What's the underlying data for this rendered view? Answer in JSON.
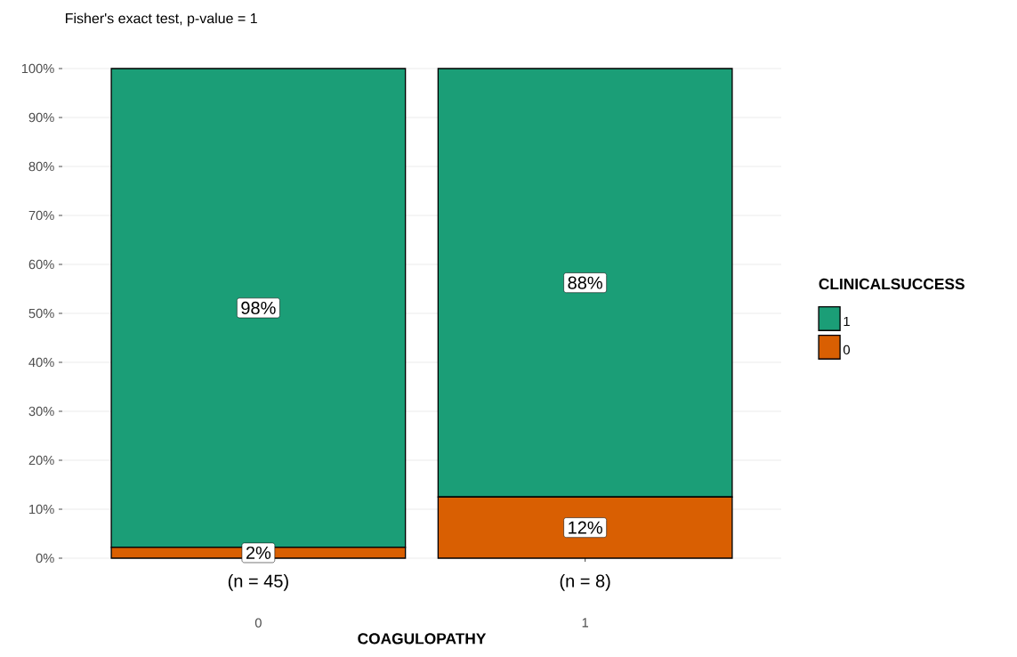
{
  "chart_data": {
    "type": "bar",
    "stacked": true,
    "title": "Fisher's exact test, p-value = 1",
    "xlabel": "COAGULOPATHY",
    "legend_title": "CLINICALSUCCESS",
    "legend": "right",
    "grid": "y",
    "categories": [
      "0",
      "1"
    ],
    "series": [
      {
        "name": "0",
        "color": "#d95f02",
        "values": [
          2.2,
          12.5
        ],
        "value_labels": [
          "2%",
          "12%"
        ]
      },
      {
        "name": "1",
        "color": "#1b9e77",
        "values": [
          97.8,
          87.5
        ],
        "value_labels": [
          "98%",
          "88%"
        ]
      }
    ],
    "ylim": [
      0,
      100
    ],
    "yticks": [
      {
        "value": 0,
        "label": "0%"
      },
      {
        "value": 10,
        "label": "10%"
      },
      {
        "value": 20,
        "label": "20%"
      },
      {
        "value": 30,
        "label": "30%"
      },
      {
        "value": 40,
        "label": "40%"
      },
      {
        "value": 50,
        "label": "50%"
      },
      {
        "value": 60,
        "label": "60%"
      },
      {
        "value": 70,
        "label": "70%"
      },
      {
        "value": 80,
        "label": "80%"
      },
      {
        "value": 90,
        "label": "90%"
      },
      {
        "value": 100,
        "label": "100%"
      }
    ],
    "annotations": [
      "(n = 45)",
      "(n = 8)"
    ]
  }
}
